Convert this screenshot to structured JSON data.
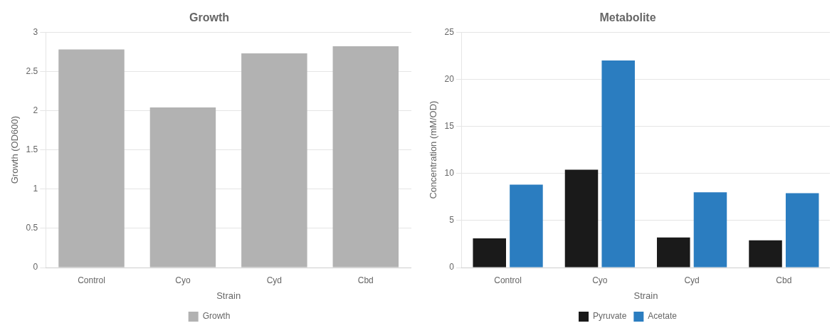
{
  "chart_data": [
    {
      "type": "bar",
      "title": "Growth",
      "x_label": "Strain",
      "y_label": "Growth (OD600)",
      "categories": [
        "Control",
        "Cyo",
        "Cyd",
        "Cbd"
      ],
      "series": [
        {
          "name": "Growth",
          "color": "#b2b2b2",
          "values": [
            2.78,
            2.04,
            2.73,
            2.82
          ]
        }
      ],
      "ylim": [
        0,
        3
      ],
      "yticks": [
        0,
        0.5,
        1,
        1.5,
        2,
        2.5,
        3
      ],
      "grid": true,
      "legend": "bottom"
    },
    {
      "type": "bar",
      "title": "Metabolite",
      "x_label": "Strain",
      "y_label": "Concentration (mM/OD)",
      "categories": [
        "Control",
        "Cyo",
        "Cyd",
        "Cbd"
      ],
      "series": [
        {
          "name": "Pyruvate",
          "color": "#1a1a1a",
          "values": [
            3.1,
            10.4,
            3.2,
            2.9
          ]
        },
        {
          "name": "Acetate",
          "color": "#2b7dc0",
          "values": [
            8.8,
            22.0,
            8.0,
            7.9
          ]
        }
      ],
      "ylim": [
        0,
        25
      ],
      "yticks": [
        0,
        5,
        10,
        15,
        20,
        25
      ],
      "grid": true,
      "legend": "bottom"
    }
  ]
}
